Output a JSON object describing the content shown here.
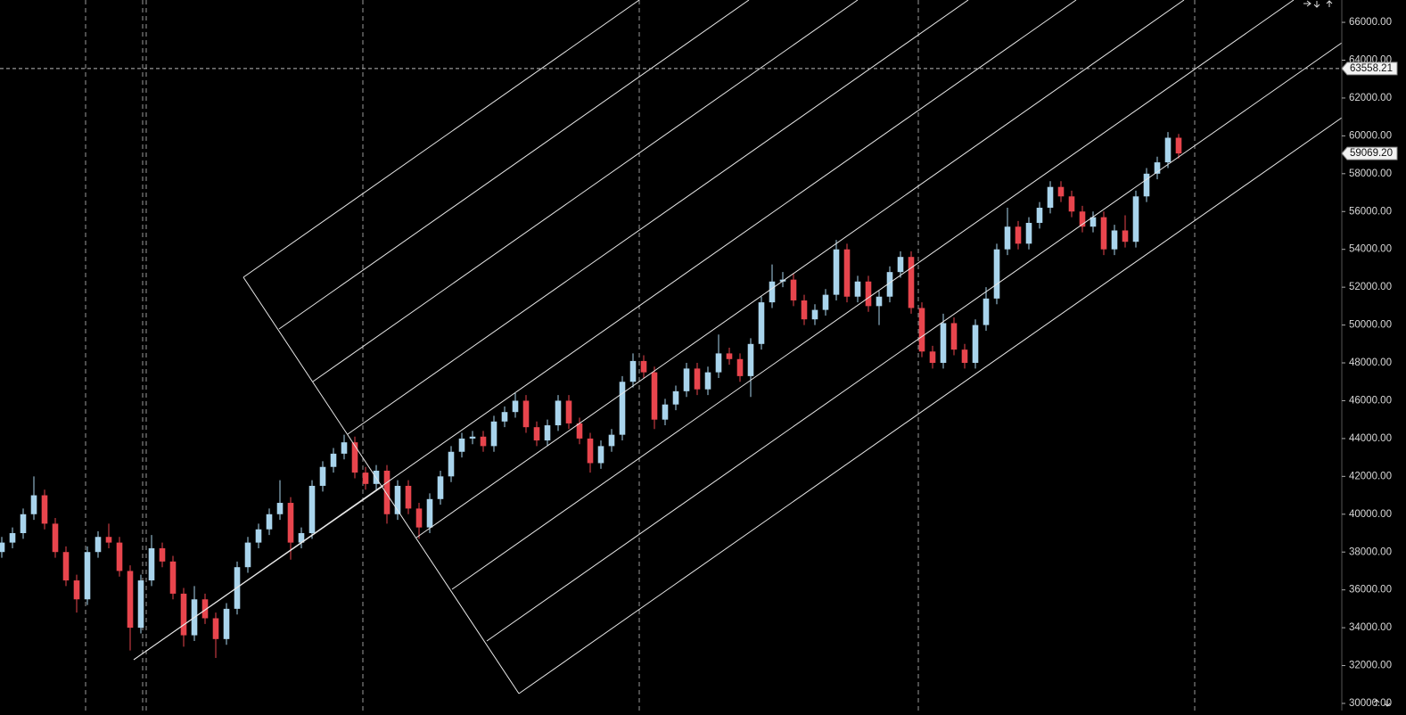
{
  "chart_data": {
    "type": "candlestick",
    "up_color": "#a9d4ec",
    "down_color": "#e8454d",
    "open": [
      38000,
      38500,
      39000,
      40000,
      41000,
      39500,
      38000,
      36500,
      35500,
      38000,
      38800,
      38500,
      37000,
      34000,
      36500,
      38200,
      37500,
      35800,
      33600,
      35500,
      34500,
      33400,
      35000,
      37200,
      38500,
      39200,
      40000,
      40600,
      38500,
      39000,
      41500,
      42500,
      43200,
      43800,
      42200,
      41600,
      42300,
      40000,
      41500,
      40300,
      39300,
      40800,
      42000,
      43300,
      44000,
      44100,
      43600,
      44900,
      45400,
      46000,
      44600,
      43900,
      44700,
      46000,
      44800,
      44000,
      42700,
      43600,
      44200,
      47000,
      48100,
      47500,
      45000,
      45800,
      46500,
      47700,
      46600,
      47500,
      48500,
      48200,
      47300,
      49000,
      51200,
      52300,
      52400,
      51300,
      50300,
      50800,
      51600,
      54000,
      51500,
      52300,
      51000,
      51500,
      52800,
      53600,
      50900,
      48600,
      48000,
      50100,
      48700,
      48000,
      50000,
      51400,
      54000,
      55200,
      54300,
      55400,
      56200,
      57300,
      56800,
      56000,
      55200,
      55700,
      54000,
      55000,
      54400,
      56800,
      58000,
      58600,
      59900
    ],
    "high": [
      38800,
      39300,
      40300,
      42000,
      41300,
      39800,
      38300,
      36800,
      38300,
      39100,
      39500,
      38800,
      37300,
      36800,
      38900,
      38500,
      37800,
      36100,
      36200,
      35800,
      34800,
      35300,
      37500,
      38800,
      39500,
      40300,
      41800,
      40900,
      39300,
      41800,
      42800,
      43500,
      44200,
      44100,
      42500,
      42600,
      42600,
      41800,
      41800,
      40600,
      41100,
      42300,
      43600,
      44300,
      44400,
      44400,
      45200,
      45700,
      46400,
      46300,
      44900,
      45000,
      46300,
      46300,
      45100,
      44300,
      43900,
      44500,
      47300,
      48500,
      48400,
      47800,
      46100,
      46800,
      48000,
      48000,
      47800,
      49500,
      48800,
      48500,
      49300,
      51500,
      53200,
      52800,
      52700,
      51600,
      51100,
      51900,
      54500,
      54300,
      52600,
      52600,
      51800,
      53100,
      53900,
      53900,
      51200,
      48900,
      50600,
      50400,
      49000,
      50300,
      52000,
      54300,
      56200,
      55500,
      55700,
      56500,
      57600,
      57600,
      57100,
      56300,
      56000,
      56000,
      55300,
      55800,
      57100,
      58300,
      58900,
      60200,
      60100
    ],
    "low": [
      37700,
      38200,
      38700,
      39700,
      39200,
      37700,
      36200,
      34800,
      35200,
      37700,
      38200,
      36700,
      32800,
      33700,
      36200,
      37200,
      35500,
      33000,
      33300,
      34200,
      32400,
      33100,
      34700,
      36900,
      38200,
      38900,
      39700,
      37600,
      38200,
      38700,
      41200,
      42200,
      42900,
      41900,
      41300,
      41300,
      39500,
      39700,
      40000,
      38700,
      39000,
      40500,
      41700,
      43000,
      43700,
      43300,
      43300,
      44600,
      45100,
      44300,
      43600,
      43600,
      44400,
      44500,
      43700,
      42200,
      42400,
      43300,
      43900,
      46700,
      47200,
      44500,
      44700,
      45500,
      46200,
      46300,
      46300,
      47200,
      47900,
      47000,
      46200,
      48700,
      50900,
      52000,
      51000,
      50000,
      50000,
      50500,
      51300,
      51200,
      51200,
      50700,
      50000,
      51200,
      52500,
      50600,
      48300,
      47700,
      47700,
      48400,
      47700,
      47700,
      49700,
      51100,
      53700,
      54000,
      54000,
      55100,
      55900,
      56500,
      55700,
      54900,
      54900,
      53700,
      53700,
      54100,
      54100,
      56500,
      57700,
      58300,
      58800
    ],
    "close": [
      38500,
      39000,
      40000,
      41000,
      39500,
      38000,
      36500,
      35500,
      38000,
      38800,
      38500,
      37000,
      34000,
      36500,
      38200,
      37500,
      35800,
      33600,
      35500,
      34500,
      33400,
      35000,
      37200,
      38500,
      39200,
      40000,
      40600,
      38500,
      39000,
      41500,
      42500,
      43200,
      43800,
      42200,
      41600,
      42300,
      40000,
      41500,
      40300,
      39300,
      40800,
      42000,
      43300,
      44000,
      44100,
      43600,
      44900,
      45400,
      46000,
      44600,
      43900,
      44700,
      46000,
      44800,
      44000,
      42700,
      43600,
      44200,
      47000,
      48100,
      47500,
      45000,
      45800,
      46500,
      47700,
      46600,
      47500,
      48500,
      48200,
      47300,
      49000,
      51200,
      52300,
      52400,
      51300,
      50300,
      50800,
      51600,
      54000,
      51500,
      52300,
      51000,
      51500,
      52800,
      53600,
      50900,
      48600,
      48000,
      50100,
      48700,
      48000,
      50000,
      51400,
      54000,
      55200,
      54300,
      55400,
      56200,
      57300,
      56800,
      56000,
      55200,
      55700,
      54000,
      55000,
      54400,
      56800,
      58000,
      58600,
      59900,
      59069.2
    ],
    "ylim": [
      29622,
      67181
    ],
    "yticks": [
      {
        "value": 30000,
        "label": "30000.00"
      },
      {
        "value": 32000,
        "label": "32000.00"
      },
      {
        "value": 34000,
        "label": "34000.00"
      },
      {
        "value": 36000,
        "label": "36000.00"
      },
      {
        "value": 38000,
        "label": "38000.00"
      },
      {
        "value": 40000,
        "label": "40000.00"
      },
      {
        "value": 42000,
        "label": "42000.00"
      },
      {
        "value": 44000,
        "label": "44000.00"
      },
      {
        "value": 46000,
        "label": "46000.00"
      },
      {
        "value": 48000,
        "label": "48000.00"
      },
      {
        "value": 50000,
        "label": "50000.00"
      },
      {
        "value": 52000,
        "label": "52000.00"
      },
      {
        "value": 54000,
        "label": "54000.00"
      },
      {
        "value": 56000,
        "label": "56000.00"
      },
      {
        "value": 58000,
        "label": "58000.00"
      },
      {
        "value": 60000,
        "label": "60000.00"
      },
      {
        "value": 62000,
        "label": "62000.00"
      },
      {
        "value": 64000,
        "label": "64000.00"
      },
      {
        "value": 66000,
        "label": "66000.00"
      }
    ],
    "price_labels": [
      {
        "value": 63558.21,
        "label": "63558.21"
      },
      {
        "value": 59069.2,
        "label": "59069.20"
      }
    ]
  }
}
